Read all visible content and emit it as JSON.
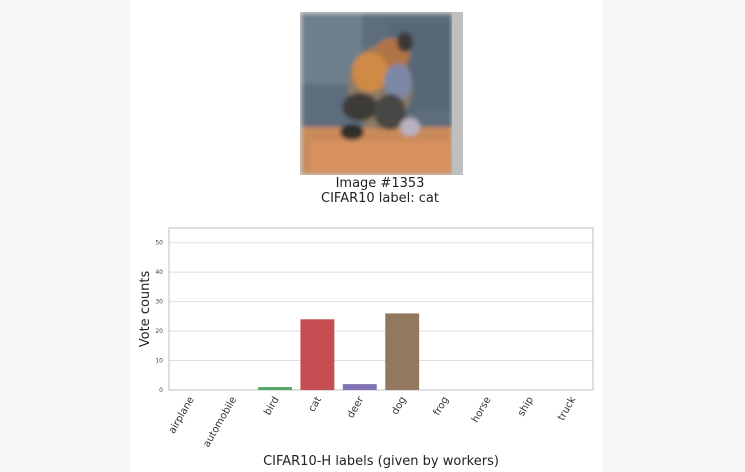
{
  "image": {
    "title": "Image  #1353",
    "label_line": "CIFAR10 label: cat",
    "thumbnail": "fox-like cat photo thumbnail"
  },
  "colors": {
    "airplane": "#4c72b0",
    "automobile": "#dd8452",
    "bird": "#55a868",
    "cat": "#c44e52",
    "deer": "#8172b3",
    "dog": "#937860",
    "frog": "#da8bc3",
    "horse": "#8c8c8c",
    "ship": "#ccb974",
    "truck": "#64b5cd"
  },
  "chart_data": {
    "type": "bar",
    "categories": [
      "airplane",
      "automobile",
      "bird",
      "cat",
      "deer",
      "dog",
      "frog",
      "horse",
      "ship",
      "truck"
    ],
    "values": [
      0,
      0,
      1,
      24,
      2,
      26,
      0,
      0,
      0,
      0
    ],
    "xlabel": "CIFAR10-H labels (given by workers)",
    "ylabel": "Vote counts",
    "ylim": [
      0,
      55
    ],
    "yticks": [
      0,
      10,
      20,
      30,
      40,
      50
    ],
    "grid": "horizontal",
    "legend": "none"
  }
}
